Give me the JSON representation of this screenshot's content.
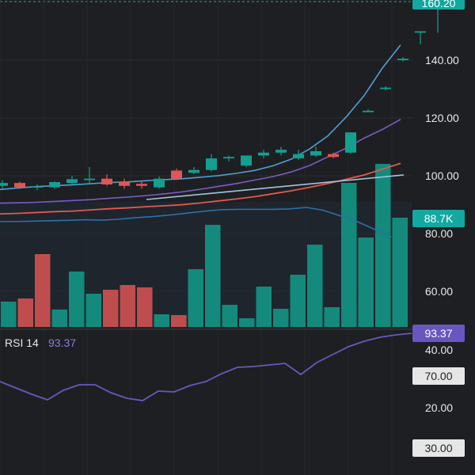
{
  "chart_data": {
    "type": "candlestick",
    "price_axis": {
      "ticks": [
        "140.00",
        "120.00",
        "100.00",
        "80.00",
        "60.00"
      ],
      "tick_values": [
        140,
        120,
        100,
        80,
        60
      ]
    },
    "price_badge": {
      "label": "160.20",
      "value": 160.2,
      "color": "#13a8a0"
    },
    "volume_badge": {
      "label": "88.7K",
      "color": "#13a8a0"
    },
    "candles": [
      {
        "o": 96.5,
        "h": 98.5,
        "l": 95.5,
        "c": 97.5
      },
      {
        "o": 97.5,
        "h": 98.0,
        "l": 95.5,
        "c": 96.0
      },
      {
        "o": 96.0,
        "h": 97.0,
        "l": 95.0,
        "c": 96.3
      },
      {
        "o": 96.0,
        "h": 98.0,
        "l": 95.5,
        "c": 97.8
      },
      {
        "o": 97.5,
        "h": 100.0,
        "l": 97.0,
        "c": 98.8
      },
      {
        "o": 98.5,
        "h": 103.0,
        "l": 97.5,
        "c": 99.0
      },
      {
        "o": 99.0,
        "h": 100.5,
        "l": 96.5,
        "c": 97.0
      },
      {
        "o": 97.8,
        "h": 99.0,
        "l": 95.5,
        "c": 96.5
      },
      {
        "o": 97.2,
        "h": 98.0,
        "l": 95.5,
        "c": 96.5
      },
      {
        "o": 96.0,
        "h": 99.8,
        "l": 95.5,
        "c": 99.0
      },
      {
        "o": 101.8,
        "h": 102.5,
        "l": 98.5,
        "c": 99.0
      },
      {
        "o": 101.0,
        "h": 103.0,
        "l": 100.5,
        "c": 102.0
      },
      {
        "o": 102.0,
        "h": 107.5,
        "l": 101.5,
        "c": 106.0
      },
      {
        "o": 106.0,
        "h": 107.0,
        "l": 105.0,
        "c": 106.5
      },
      {
        "o": 103.5,
        "h": 107.0,
        "l": 103.0,
        "c": 107.0
      },
      {
        "o": 107.0,
        "h": 109.0,
        "l": 106.0,
        "c": 108.0
      },
      {
        "o": 108.0,
        "h": 110.0,
        "l": 107.0,
        "c": 109.0
      },
      {
        "o": 106.0,
        "h": 109.0,
        "l": 105.5,
        "c": 107.5
      },
      {
        "o": 107.0,
        "h": 110.0,
        "l": 106.5,
        "c": 108.5
      },
      {
        "o": 107.5,
        "h": 108.0,
        "l": 106.0,
        "c": 106.5
      },
      {
        "o": 108.0,
        "h": 115.0,
        "l": 107.5,
        "c": 115.0
      },
      {
        "o": 122.0,
        "h": 123.0,
        "l": 122.0,
        "c": 122.5
      },
      {
        "o": 130.0,
        "h": 131.0,
        "l": 129.5,
        "c": 130.5
      },
      {
        "o": 140.0,
        "h": 141.0,
        "l": 139.5,
        "c": 140.5
      },
      {
        "o": 149.5,
        "h": 150.0,
        "l": 145.5,
        "c": 150.0
      },
      {
        "o": 160.0,
        "h": 160.6,
        "l": 149.5,
        "c": 160.2
      }
    ],
    "volume": [
      {
        "v": "green",
        "h": 32
      },
      {
        "v": "red",
        "h": 36
      },
      {
        "v": "red",
        "h": 92
      },
      {
        "v": "green",
        "h": 22
      },
      {
        "v": "green",
        "h": 70
      },
      {
        "v": "green",
        "h": 42
      },
      {
        "v": "red",
        "h": 47
      },
      {
        "v": "red",
        "h": 53
      },
      {
        "v": "red",
        "h": 50
      },
      {
        "v": "green",
        "h": 16
      },
      {
        "v": "red",
        "h": 15
      },
      {
        "v": "green",
        "h": 73
      },
      {
        "v": "green",
        "h": 129
      },
      {
        "v": "green",
        "h": 28
      },
      {
        "v": "green",
        "h": 11
      },
      {
        "v": "green",
        "h": 51
      },
      {
        "v": "green",
        "h": 23
      },
      {
        "v": "green",
        "h": 66
      },
      {
        "v": "green",
        "h": 104
      },
      {
        "v": "green",
        "h": 25
      },
      {
        "v": "green",
        "h": 182
      },
      {
        "v": "green",
        "h": 113
      },
      {
        "v": "green",
        "h": 206
      },
      {
        "v": "green",
        "h": 138
      }
    ],
    "ma_series": [
      {
        "color": "#e05a4e",
        "points": [
          95,
          95.2,
          95.5,
          95.8,
          96.0,
          96.4,
          96.8,
          97.1,
          97.5,
          97.8,
          98.2,
          98.8,
          99.5,
          100.2,
          101.0,
          102.0,
          103.0,
          104.2,
          105.5,
          107.0,
          108.5,
          110.5,
          112.5
        ]
      },
      {
        "color": "#7a5cc4",
        "points": [
          96,
          96.1,
          96.3,
          96.6,
          96.9,
          97.2,
          97.7,
          98.1,
          98.6,
          99.2,
          99.9,
          100.8,
          101.8,
          102.8,
          104.0,
          105.2,
          106.8,
          109.0,
          112.0,
          115.0,
          118.5,
          121.5,
          125.0
        ]
      },
      {
        "color": "#4f9fd0",
        "points": [
          98,
          98.5,
          99,
          99.3,
          99.6,
          100,
          100.4,
          100.6,
          101.0,
          101.4,
          101.7,
          102.2,
          102.8,
          103.6,
          104.6,
          106.2,
          108.5,
          112.0,
          116.5,
          123.0,
          130.5,
          140.0,
          148.0
        ]
      }
    ],
    "vol_ma": {
      "color": "#2f6fa8",
      "points": [
        83.5,
        83.6,
        83.8,
        84,
        84.2,
        84.5,
        84.3,
        84.8,
        85.6,
        86.2,
        87,
        88,
        89,
        89.8,
        90,
        90,
        90,
        90.2,
        91,
        89.5,
        86.5,
        83.5,
        79.5,
        75.5
      ]
    },
    "rsi": {
      "label": "RSI 14",
      "value": "93.37",
      "axis_ticks": [
        "40.00",
        "70.00",
        "20.00",
        "30.00"
      ],
      "points": [
        482,
        490,
        498,
        505,
        493,
        486,
        486,
        496,
        503,
        506,
        494,
        495,
        487,
        482,
        472,
        464,
        463,
        461,
        459,
        473,
        458,
        448,
        438,
        431,
        426,
        423,
        421
      ]
    },
    "rsi_badge": {
      "label": "93.37",
      "color": "#7a5cc4"
    }
  }
}
